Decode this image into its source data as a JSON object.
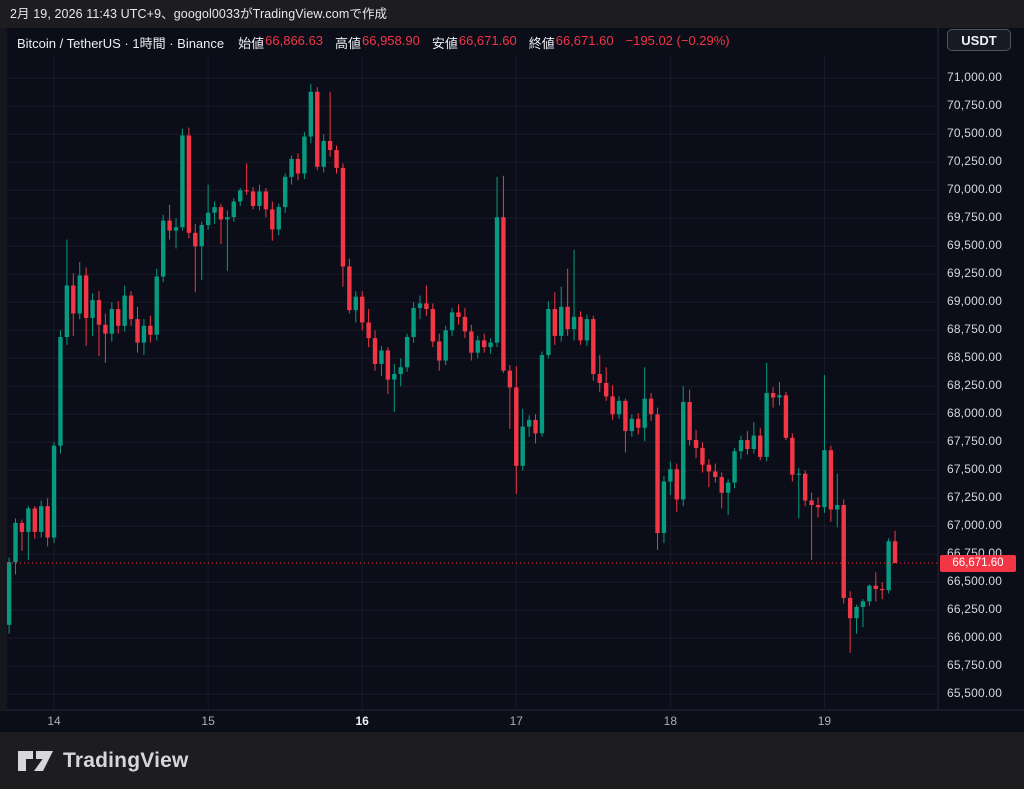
{
  "header": {
    "attribution": "2月 19, 2026 11:43 UTC+9、googol0033がTradingView.comで作成"
  },
  "legend": {
    "symbol_title": "Bitcoin / TetherUS · 1時間 · Binance",
    "ohlc": [
      {
        "label": "始値",
        "value": "66,866.63"
      },
      {
        "label": "高値",
        "value": "66,958.90"
      },
      {
        "label": "安値",
        "value": "66,671.60"
      },
      {
        "label": "終値",
        "value": "66,671.60"
      }
    ],
    "change": "−195.02 (−0.29%)"
  },
  "currency_button": {
    "label": "USDT"
  },
  "price_axis": {
    "labels": [
      "71,000.00",
      "70,750.00",
      "70,500.00",
      "70,250.00",
      "70,000.00",
      "69,750.00",
      "69,500.00",
      "69,250.00",
      "69,000.00",
      "68,750.00",
      "68,500.00",
      "68,250.00",
      "68,000.00",
      "67,750.00",
      "67,500.00",
      "67,250.00",
      "67,000.00",
      "66,750.00",
      "66,500.00",
      "66,250.00",
      "66,000.00",
      "65,750.00",
      "65,500.00"
    ],
    "last_price_label": "66,671.60"
  },
  "time_axis": {
    "labels": [
      {
        "text": "14",
        "bold": false
      },
      {
        "text": "15",
        "bold": false
      },
      {
        "text": "16",
        "bold": true
      },
      {
        "text": "17",
        "bold": false
      },
      {
        "text": "18",
        "bold": false
      },
      {
        "text": "19",
        "bold": false
      }
    ]
  },
  "footer": {
    "logo_text": "TradingView"
  },
  "colors": {
    "up": "#089981",
    "down": "#f23645",
    "accent_red": "#f23645",
    "chart_bg": "#0b0e18",
    "frame_bg": "#1d1d1f",
    "grid": "rgba(130,145,185,0.10)",
    "separator": "#242a3a"
  },
  "chart_data": {
    "type": "candlestick",
    "symbol": "Bitcoin / TetherUS",
    "interval": "1時間",
    "exchange": "Binance",
    "current_bar": {
      "open": 66866.63,
      "high": 66958.9,
      "low": 66671.6,
      "close": 66671.6,
      "change": -195.02,
      "change_pct": -0.29
    },
    "last_price": 66671.6,
    "y_axis": {
      "min": 65500,
      "max": 71000,
      "step": 250
    },
    "x_axis_day_labels": [
      "14",
      "15",
      "16",
      "17",
      "18",
      "19"
    ],
    "day_start_indices": [
      7,
      31,
      55,
      79,
      103,
      127
    ],
    "candles": [
      [
        66120,
        66720,
        66040,
        66680
      ],
      [
        66680,
        67070,
        66570,
        67030
      ],
      [
        67030,
        67060,
        66780,
        66950
      ],
      [
        66950,
        67180,
        66700,
        67160
      ],
      [
        67160,
        67180,
        66890,
        66950
      ],
      [
        66950,
        67230,
        66900,
        67180
      ],
      [
        67180,
        67250,
        66820,
        66900
      ],
      [
        66900,
        67750,
        66850,
        67720
      ],
      [
        67720,
        68750,
        67650,
        68690
      ],
      [
        68690,
        69560,
        68620,
        69150
      ],
      [
        69150,
        69260,
        68700,
        68900
      ],
      [
        68900,
        69360,
        68850,
        69240
      ],
      [
        69240,
        69310,
        68610,
        68860
      ],
      [
        68860,
        69080,
        68700,
        69020
      ],
      [
        69020,
        69100,
        68520,
        68800
      ],
      [
        68800,
        68900,
        68460,
        68720
      ],
      [
        68720,
        69000,
        68650,
        68940
      ],
      [
        68940,
        69010,
        68720,
        68790
      ],
      [
        68790,
        69150,
        68740,
        69060
      ],
      [
        69060,
        69100,
        68790,
        68850
      ],
      [
        68850,
        68960,
        68550,
        68640
      ],
      [
        68640,
        68850,
        68530,
        68790
      ],
      [
        68790,
        68880,
        68640,
        68710
      ],
      [
        68710,
        69300,
        68660,
        69230
      ],
      [
        69230,
        69780,
        69180,
        69730
      ],
      [
        69730,
        69870,
        69560,
        69640
      ],
      [
        69640,
        69750,
        69480,
        69670
      ],
      [
        69670,
        70550,
        69640,
        70490
      ],
      [
        70490,
        70560,
        69570,
        69620
      ],
      [
        69620,
        69700,
        69090,
        69500
      ],
      [
        69500,
        69720,
        69200,
        69690
      ],
      [
        69690,
        70050,
        69650,
        69800
      ],
      [
        69800,
        69900,
        69700,
        69850
      ],
      [
        69850,
        69880,
        69520,
        69740
      ],
      [
        69740,
        69820,
        69280,
        69760
      ],
      [
        69760,
        69930,
        69720,
        69900
      ],
      [
        69900,
        70020,
        69860,
        70000
      ],
      [
        70000,
        70240,
        69960,
        69990
      ],
      [
        69990,
        70030,
        69830,
        69860
      ],
      [
        69860,
        70050,
        69820,
        69990
      ],
      [
        69990,
        70020,
        69760,
        69830
      ],
      [
        69830,
        69900,
        69550,
        69650
      ],
      [
        69650,
        69880,
        69600,
        69850
      ],
      [
        69850,
        70150,
        69800,
        70120
      ],
      [
        70120,
        70310,
        70050,
        70280
      ],
      [
        70280,
        70330,
        70090,
        70150
      ],
      [
        70150,
        70520,
        70100,
        70480
      ],
      [
        70480,
        70950,
        70420,
        70880
      ],
      [
        70880,
        70920,
        70180,
        70210
      ],
      [
        70210,
        70500,
        70160,
        70440
      ],
      [
        70440,
        70880,
        70300,
        70360
      ],
      [
        70360,
        70400,
        70150,
        70200
      ],
      [
        70200,
        70240,
        69140,
        69320
      ],
      [
        69320,
        69390,
        68900,
        68930
      ],
      [
        68930,
        69100,
        68820,
        69050
      ],
      [
        69050,
        69100,
        68750,
        68820
      ],
      [
        68820,
        68940,
        68600,
        68680
      ],
      [
        68680,
        68750,
        68390,
        68450
      ],
      [
        68450,
        68610,
        68340,
        68570
      ],
      [
        68570,
        68600,
        68180,
        68310
      ],
      [
        68310,
        68450,
        68020,
        68360
      ],
      [
        68360,
        68500,
        68250,
        68420
      ],
      [
        68420,
        68720,
        68380,
        68690
      ],
      [
        68690,
        69000,
        68640,
        68950
      ],
      [
        68950,
        69060,
        68850,
        68990
      ],
      [
        68990,
        69150,
        68880,
        68940
      ],
      [
        68940,
        68990,
        68600,
        68650
      ],
      [
        68650,
        68720,
        68390,
        68480
      ],
      [
        68480,
        68790,
        68440,
        68750
      ],
      [
        68750,
        68950,
        68700,
        68910
      ],
      [
        68910,
        68980,
        68800,
        68870
      ],
      [
        68870,
        68950,
        68680,
        68740
      ],
      [
        68740,
        68800,
        68480,
        68550
      ],
      [
        68550,
        68700,
        68500,
        68660
      ],
      [
        68660,
        68720,
        68550,
        68600
      ],
      [
        68600,
        68680,
        68540,
        68640
      ],
      [
        68640,
        70120,
        68600,
        69760
      ],
      [
        69760,
        70130,
        68370,
        68390
      ],
      [
        68390,
        68440,
        67870,
        68240
      ],
      [
        68240,
        68430,
        67290,
        67540
      ],
      [
        67540,
        68050,
        67500,
        67890
      ],
      [
        67890,
        67990,
        67800,
        67950
      ],
      [
        67950,
        68000,
        67740,
        67830
      ],
      [
        67830,
        68560,
        67800,
        68530
      ],
      [
        68530,
        69010,
        68500,
        68940
      ],
      [
        68940,
        69090,
        68620,
        68700
      ],
      [
        68700,
        69140,
        68650,
        68960
      ],
      [
        68960,
        69300,
        68700,
        68760
      ],
      [
        68760,
        69470,
        68660,
        68870
      ],
      [
        68870,
        68920,
        68620,
        68660
      ],
      [
        68660,
        68890,
        68610,
        68850
      ],
      [
        68850,
        68880,
        68300,
        68360
      ],
      [
        68360,
        68530,
        68200,
        68280
      ],
      [
        68280,
        68420,
        68120,
        68160
      ],
      [
        68160,
        68260,
        67950,
        68000
      ],
      [
        68000,
        68160,
        67960,
        68120
      ],
      [
        68120,
        68140,
        67660,
        67850
      ],
      [
        67850,
        68000,
        67800,
        67960
      ],
      [
        67960,
        68010,
        67820,
        67880
      ],
      [
        67880,
        68420,
        67760,
        68140
      ],
      [
        68140,
        68190,
        67940,
        68000
      ],
      [
        68000,
        68060,
        66790,
        66940
      ],
      [
        66940,
        67450,
        66850,
        67400
      ],
      [
        67400,
        67580,
        67280,
        67510
      ],
      [
        67510,
        67560,
        67130,
        67240
      ],
      [
        67240,
        68250,
        67180,
        68110
      ],
      [
        68110,
        68220,
        67720,
        67770
      ],
      [
        67770,
        67860,
        67610,
        67700
      ],
      [
        67700,
        67750,
        67480,
        67550
      ],
      [
        67550,
        67600,
        67350,
        67490
      ],
      [
        67490,
        67560,
        67390,
        67440
      ],
      [
        67440,
        67480,
        67160,
        67300
      ],
      [
        67300,
        67420,
        67100,
        67390
      ],
      [
        67390,
        67700,
        67340,
        67670
      ],
      [
        67670,
        67810,
        67600,
        67770
      ],
      [
        67770,
        67850,
        67640,
        67690
      ],
      [
        67690,
        67930,
        67650,
        67810
      ],
      [
        67810,
        67880,
        67590,
        67620
      ],
      [
        67620,
        68460,
        67580,
        68190
      ],
      [
        68190,
        68240,
        68060,
        68150
      ],
      [
        68150,
        68290,
        68080,
        68170
      ],
      [
        68170,
        68200,
        67770,
        67790
      ],
      [
        67790,
        67830,
        67400,
        67460
      ],
      [
        67460,
        67520,
        67070,
        67470
      ],
      [
        67470,
        67500,
        67180,
        67230
      ],
      [
        67230,
        67300,
        66700,
        67190
      ],
      [
        67190,
        67260,
        67080,
        67170
      ],
      [
        67170,
        68350,
        67120,
        67680
      ],
      [
        67680,
        67720,
        67040,
        67150
      ],
      [
        67150,
        67470,
        66990,
        67190
      ],
      [
        67190,
        67240,
        66310,
        66360
      ],
      [
        66360,
        66420,
        65870,
        66180
      ],
      [
        66180,
        66300,
        66040,
        66280
      ],
      [
        66280,
        66350,
        66100,
        66330
      ],
      [
        66330,
        66480,
        66290,
        66470
      ],
      [
        66470,
        66590,
        66330,
        66440
      ],
      [
        66440,
        66500,
        66350,
        66430
      ],
      [
        66430,
        66893,
        66400,
        66866.63
      ],
      [
        66866.63,
        66958.9,
        66671.6,
        66671.6
      ]
    ]
  }
}
